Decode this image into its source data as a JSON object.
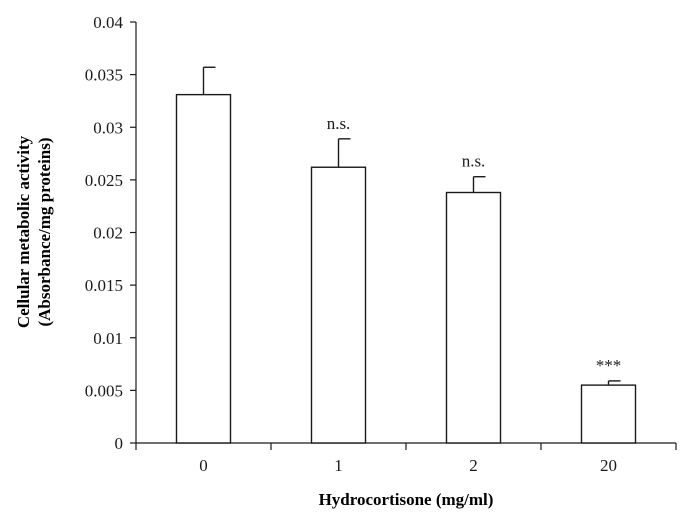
{
  "chart_data": {
    "type": "bar",
    "title": "",
    "xlabel": "Hydrocortisone (mg/ml)",
    "ylabel_line1": "Cellular metabolic activity",
    "ylabel_line2": "(Absorbance/mg proteins)",
    "ylim": [
      0,
      0.04
    ],
    "yticks": [
      "0",
      "0.005",
      "0.01",
      "0.015",
      "0.02",
      "0.025",
      "0.03",
      "0.035",
      "0.04"
    ],
    "categories": [
      "0",
      "1",
      "2",
      "20"
    ],
    "values": [
      0.0331,
      0.0262,
      0.0238,
      0.0055
    ],
    "errors": [
      0.0026,
      0.0027,
      0.0015,
      0.0004
    ],
    "annotations": [
      "",
      "n.s.",
      "n.s.",
      "***"
    ],
    "grid": false,
    "bar_color": "#ffffff",
    "edge_color": "#1a1a1a"
  }
}
